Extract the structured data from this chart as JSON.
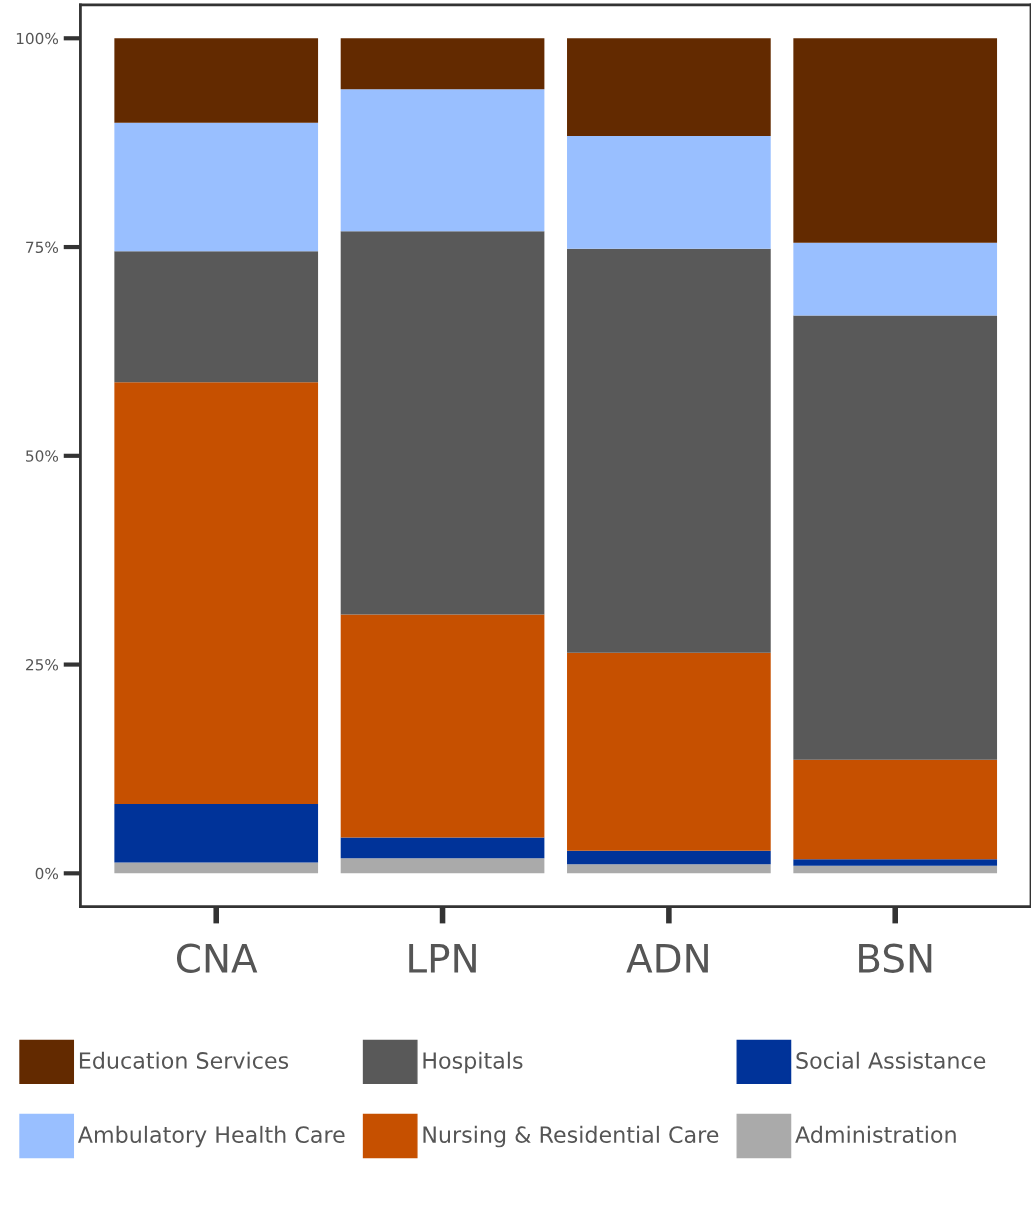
{
  "chart_data": {
    "type": "bar",
    "stacked": true,
    "categories": [
      "CNA",
      "LPN",
      "ADN",
      "BSN"
    ],
    "series": [
      {
        "name": "Administration",
        "color": "#aaaaaa",
        "values": [
          1.3,
          1.8,
          1.1,
          0.9
        ]
      },
      {
        "name": "Social Assistance",
        "color": "#003399",
        "values": [
          7.0,
          2.5,
          1.6,
          0.8
        ]
      },
      {
        "name": "Nursing & Residential Care",
        "color": "#c65000",
        "values": [
          50.5,
          26.7,
          23.7,
          11.9
        ]
      },
      {
        "name": "Hospitals",
        "color": "#595959",
        "values": [
          15.7,
          45.9,
          48.4,
          53.2
        ]
      },
      {
        "name": "Ambulatory Health Care",
        "color": "#99bfff",
        "values": [
          15.4,
          17.0,
          13.5,
          8.7
        ]
      },
      {
        "name": "Education Services",
        "color": "#632a00",
        "values": [
          10.1,
          6.1,
          11.7,
          24.5
        ]
      }
    ],
    "ylim": [
      -4,
      104
    ],
    "yticks": [
      {
        "value": 0,
        "label": "0%"
      },
      {
        "value": 25,
        "label": "25%"
      },
      {
        "value": 50,
        "label": "50%"
      },
      {
        "value": 75,
        "label": "75%"
      },
      {
        "value": 100,
        "label": "100%"
      }
    ],
    "grid": false,
    "legend": "bottom"
  }
}
